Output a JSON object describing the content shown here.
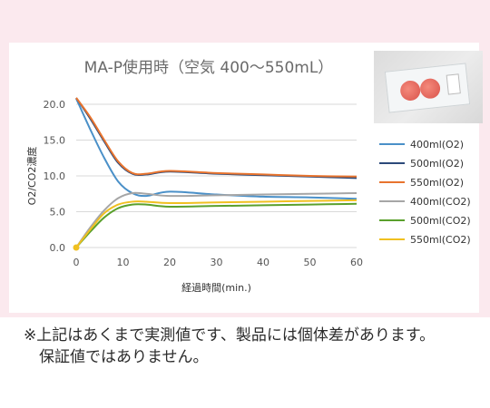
{
  "chart_data": {
    "type": "line",
    "title": "MA-P使用時（空気 400～550mL）",
    "xlabel": "経過時間(min.)",
    "ylabel": "O2/CO2濃度",
    "xlim": [
      0,
      60
    ],
    "ylim": [
      0,
      20
    ],
    "xticks": [
      "0",
      "10",
      "20",
      "30",
      "40",
      "50",
      "60"
    ],
    "yticks": [
      "0.0",
      "5.0",
      "10.0",
      "15.0",
      "20.0"
    ],
    "legend_position": "right",
    "grid": "horizontal",
    "series": [
      {
        "name": "400ml(O2)",
        "color": "#4a90c8",
        "x": [
          0,
          3,
          6,
          9,
          12,
          15,
          20,
          30,
          40,
          50,
          60
        ],
        "y": [
          20.8,
          16.5,
          12.5,
          9.2,
          7.6,
          7.2,
          7.8,
          7.4,
          7.1,
          7.0,
          6.8
        ]
      },
      {
        "name": "500ml(O2)",
        "color": "#2c4a7a",
        "x": [
          0,
          3,
          6,
          9,
          12,
          15,
          20,
          30,
          40,
          50,
          60
        ],
        "y": [
          20.9,
          18.0,
          14.8,
          11.8,
          10.3,
          10.2,
          10.6,
          10.3,
          10.1,
          9.9,
          9.7
        ]
      },
      {
        "name": "550ml(O2)",
        "color": "#e8742e",
        "x": [
          0,
          3,
          6,
          9,
          12,
          15,
          20,
          30,
          40,
          50,
          60
        ],
        "y": [
          20.9,
          18.2,
          15.0,
          12.0,
          10.4,
          10.3,
          10.7,
          10.4,
          10.2,
          10.0,
          9.9
        ]
      },
      {
        "name": "400ml(CO2)",
        "color": "#a6a6a6",
        "x": [
          0,
          3,
          6,
          9,
          12,
          15,
          20,
          30,
          40,
          50,
          60
        ],
        "y": [
          0.0,
          2.8,
          5.2,
          6.9,
          7.6,
          7.5,
          7.2,
          7.3,
          7.4,
          7.5,
          7.6
        ]
      },
      {
        "name": "500ml(CO2)",
        "color": "#5aa02c",
        "x": [
          0,
          3,
          6,
          9,
          12,
          15,
          20,
          30,
          40,
          50,
          60
        ],
        "y": [
          0.0,
          2.2,
          4.2,
          5.5,
          6.0,
          6.0,
          5.7,
          5.8,
          5.9,
          6.0,
          6.1
        ]
      },
      {
        "name": "550ml(CO2)",
        "color": "#f0c020",
        "x": [
          0,
          3,
          6,
          9,
          12,
          15,
          20,
          30,
          40,
          50,
          60
        ],
        "y": [
          0.0,
          2.5,
          4.8,
          6.0,
          6.4,
          6.4,
          6.2,
          6.3,
          6.4,
          6.5,
          6.6
        ]
      }
    ]
  },
  "note": {
    "line1": "※上記はあくまで実測値です、製品には個体差があります。",
    "line2": "　保証値ではありません。"
  }
}
